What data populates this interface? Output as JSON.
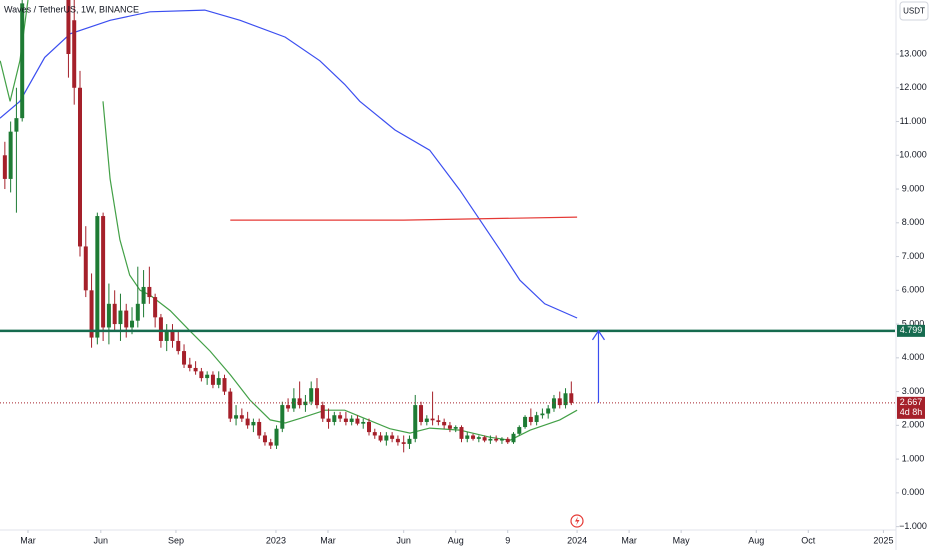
{
  "chart_data": {
    "type": "candlestick",
    "title": "Waves / TetherUS, 1W, BINANCE",
    "currency": "USDT",
    "xlim": [
      -4.84,
      150
    ],
    "ylim": [
      -1.1,
      14.6
    ],
    "xticks": [
      {
        "value": 0,
        "label": "Mar"
      },
      {
        "value": 12.6,
        "label": "Jun"
      },
      {
        "value": 25.6,
        "label": "Sep"
      },
      {
        "value": 42.9,
        "label": "2023"
      },
      {
        "value": 51.9,
        "label": "Mar"
      },
      {
        "value": 65,
        "label": "Jun"
      },
      {
        "value": 74,
        "label": "Aug"
      },
      {
        "value": 83,
        "label": "9"
      },
      {
        "value": 95,
        "label": "2024"
      },
      {
        "value": 104,
        "label": "Mar"
      },
      {
        "value": 113,
        "label": "May"
      },
      {
        "value": 126,
        "label": "Aug"
      },
      {
        "value": 135,
        "label": "Oct"
      },
      {
        "value": 148,
        "label": "2025"
      }
    ],
    "yticks": [
      {
        "value": -1,
        "label": "−1.000"
      },
      {
        "value": 0,
        "label": "0.000"
      },
      {
        "value": 1,
        "label": "1.000"
      },
      {
        "value": 2,
        "label": "2.000"
      },
      {
        "value": 3,
        "label": "3.000"
      },
      {
        "value": 4,
        "label": "4.000"
      },
      {
        "value": 5,
        "label": "5.000"
      },
      {
        "value": 6,
        "label": "6.000"
      },
      {
        "value": 7,
        "label": "7.000"
      },
      {
        "value": 8,
        "label": "8.000"
      },
      {
        "value": 9,
        "label": "9.000"
      },
      {
        "value": 10,
        "label": "10.000"
      },
      {
        "value": 11,
        "label": "11.000"
      },
      {
        "value": 12,
        "label": "12.000"
      },
      {
        "value": 13,
        "label": "13.000"
      }
    ],
    "up_color": "#1e7b34",
    "down_color": "#a5202a",
    "candles": {
      "x": [
        -4,
        -3,
        -2,
        -1,
        7,
        8,
        9,
        10,
        11,
        12,
        13,
        14,
        15,
        16,
        17,
        18,
        19,
        20,
        21,
        22,
        23,
        24,
        25,
        26,
        27,
        28,
        29,
        30,
        31,
        32,
        33,
        34,
        35,
        36,
        37,
        38,
        39,
        40,
        41,
        42,
        43,
        44,
        45,
        46,
        47,
        48,
        49,
        50,
        51,
        52,
        53,
        54,
        55,
        56,
        57,
        58,
        59,
        60,
        61,
        62,
        63,
        64,
        65,
        66,
        67,
        68,
        69,
        70,
        71,
        72,
        73,
        74,
        75,
        76,
        77,
        78,
        79,
        80,
        81,
        82,
        83,
        84,
        85,
        86,
        87,
        88,
        89,
        90,
        91,
        92,
        93,
        94
      ],
      "open": [
        10.0,
        9.3,
        10.7,
        11.1,
        14.6,
        14.0,
        12.0,
        7.3,
        6.0,
        4.6,
        8.2,
        4.9,
        5.6,
        5.0,
        5.4,
        4.9,
        5.1,
        5.6,
        6.1,
        5.8,
        5.2,
        4.5,
        4.8,
        4.5,
        4.2,
        3.8,
        3.7,
        3.6,
        3.4,
        3.5,
        3.2,
        3.4,
        3.0,
        2.2,
        2.3,
        2.2,
        2.0,
        2.1,
        1.7,
        1.5,
        1.4,
        1.9,
        2.6,
        2.5,
        2.8,
        2.6,
        2.7,
        3.1,
        2.6,
        2.2,
        2.1,
        2.3,
        2.2,
        2.1,
        2.2,
        2.05,
        2.1,
        1.8,
        1.7,
        1.55,
        1.7,
        1.6,
        1.5,
        1.45,
        1.6,
        2.6,
        2.1,
        2.2,
        2.15,
        2.1,
        2.0,
        1.9,
        1.95,
        1.6,
        1.7,
        1.6,
        1.65,
        1.55,
        1.6,
        1.55,
        1.6,
        1.5,
        1.75,
        1.95,
        2.25,
        2.1,
        2.3,
        2.35,
        2.5,
        2.8,
        2.6,
        2.95
      ],
      "high": [
        10.4,
        11.0,
        12.0,
        14.6,
        14.6,
        14.6,
        12.5,
        7.9,
        6.5,
        8.3,
        8.3,
        6.2,
        6.0,
        5.9,
        5.6,
        5.5,
        6.7,
        6.6,
        6.7,
        5.9,
        5.3,
        5.0,
        5.0,
        4.8,
        4.4,
        4.0,
        3.9,
        3.7,
        3.6,
        3.6,
        3.6,
        3.5,
        3.1,
        2.6,
        2.5,
        2.4,
        2.2,
        2.2,
        1.8,
        1.6,
        2.0,
        2.7,
        2.8,
        3.1,
        3.3,
        2.9,
        3.3,
        3.4,
        2.7,
        2.5,
        2.4,
        2.4,
        2.4,
        2.3,
        2.3,
        2.2,
        2.2,
        1.9,
        1.8,
        1.8,
        1.8,
        1.7,
        1.7,
        1.7,
        2.9,
        2.7,
        2.3,
        3.0,
        2.3,
        2.2,
        2.1,
        2.0,
        2.0,
        1.8,
        1.75,
        1.7,
        1.7,
        1.7,
        1.7,
        1.65,
        1.65,
        1.8,
        2.0,
        2.3,
        2.5,
        2.4,
        2.5,
        2.6,
        2.9,
        3.0,
        3.1,
        3.3
      ],
      "low": [
        9.0,
        8.9,
        8.3,
        11.0,
        12.3,
        11.5,
        7.0,
        5.8,
        4.3,
        4.4,
        4.5,
        4.4,
        4.8,
        4.5,
        4.6,
        4.7,
        4.9,
        5.2,
        5.6,
        4.9,
        4.3,
        4.2,
        4.3,
        4.1,
        3.7,
        3.6,
        3.5,
        3.3,
        3.2,
        3.1,
        3.1,
        2.9,
        2.1,
        2.0,
        2.1,
        1.9,
        1.8,
        1.6,
        1.4,
        1.3,
        1.3,
        1.8,
        2.4,
        2.4,
        2.5,
        2.4,
        2.6,
        2.5,
        2.1,
        1.9,
        2.0,
        2.1,
        2.0,
        2.0,
        2.0,
        1.9,
        1.7,
        1.6,
        1.5,
        1.4,
        1.5,
        1.4,
        1.2,
        1.3,
        1.5,
        2.0,
        2.0,
        2.0,
        2.0,
        1.9,
        1.8,
        1.8,
        1.5,
        1.5,
        1.55,
        1.5,
        1.5,
        1.45,
        1.5,
        1.45,
        1.45,
        1.45,
        1.7,
        1.9,
        2.0,
        2.0,
        2.2,
        2.2,
        2.4,
        2.5,
        2.5,
        2.6
      ],
      "close": [
        9.3,
        10.7,
        11.1,
        14.5,
        13.0,
        12.0,
        7.3,
        6.0,
        4.6,
        8.2,
        4.9,
        5.6,
        5.0,
        5.4,
        4.9,
        5.1,
        5.6,
        6.1,
        5.8,
        5.2,
        4.5,
        4.8,
        4.5,
        4.2,
        3.8,
        3.7,
        3.6,
        3.4,
        3.5,
        3.2,
        3.4,
        3.0,
        2.2,
        2.3,
        2.2,
        2.0,
        2.1,
        1.7,
        1.5,
        1.4,
        1.9,
        2.6,
        2.5,
        2.8,
        2.6,
        2.7,
        3.1,
        2.6,
        2.2,
        2.1,
        2.3,
        2.2,
        2.1,
        2.2,
        2.05,
        2.1,
        1.8,
        1.7,
        1.55,
        1.7,
        1.6,
        1.5,
        1.45,
        1.6,
        2.6,
        2.1,
        2.2,
        2.15,
        2.1,
        2.0,
        1.9,
        1.95,
        1.6,
        1.7,
        1.6,
        1.65,
        1.55,
        1.6,
        1.55,
        1.6,
        1.5,
        1.75,
        1.95,
        2.25,
        2.1,
        2.3,
        2.35,
        2.5,
        2.8,
        2.6,
        2.95,
        2.667
      ]
    },
    "lines": [
      {
        "color": "#3b4ef0",
        "x": [
          -4.84,
          -1.4,
          2.9,
          7.3,
          14.2,
          21.1,
          30.6,
          36.7,
          44.5,
          50.5,
          54.8,
          57.4,
          63.5,
          69.5,
          74.7,
          78.2,
          81.7,
          85.1,
          89.4,
          95
        ],
        "values": [
          11.1,
          11.6,
          12.9,
          13.6,
          14.0,
          14.25,
          14.3,
          14.0,
          13.5,
          12.8,
          12.1,
          11.6,
          10.75,
          10.15,
          8.97,
          8.08,
          7.19,
          6.3,
          5.6,
          5.18
        ]
      },
      {
        "color": "#43a047",
        "x": [
          -4.8,
          -3.1,
          -1.4,
          0,
          6,
          12.98,
          14.2,
          15.9,
          17.6,
          19.4,
          21.1,
          24.6,
          28,
          31.5,
          35,
          38.4,
          41.9,
          44.5,
          47,
          51.4,
          54.8,
          58.3,
          62.6,
          66.1,
          69.5,
          74.7,
          79.9,
          83.4,
          86.9,
          92,
          95
        ],
        "values": [
          12.8,
          11.6,
          12.8,
          14.6,
          null,
          11.6,
          9.3,
          7.5,
          6.45,
          6.0,
          5.86,
          5.4,
          4.8,
          4.2,
          3.5,
          2.75,
          2.16,
          2.07,
          2.2,
          2.45,
          2.45,
          2.2,
          1.9,
          1.77,
          1.92,
          1.86,
          1.65,
          1.56,
          1.86,
          2.16,
          2.45
        ]
      },
      {
        "color": "#e53935",
        "x": [
          35,
          65,
          95
        ],
        "values": [
          8.08,
          8.08,
          8.17
        ]
      }
    ],
    "level": {
      "value": 4.799,
      "color": "#166b4f"
    },
    "last": {
      "value": 2.667,
      "countdown": "4d 8h",
      "color": "#a5202a"
    },
    "arrow": {
      "x": 98.7,
      "from": 2.667,
      "to": 4.799,
      "color": "#3b4ef0"
    }
  }
}
